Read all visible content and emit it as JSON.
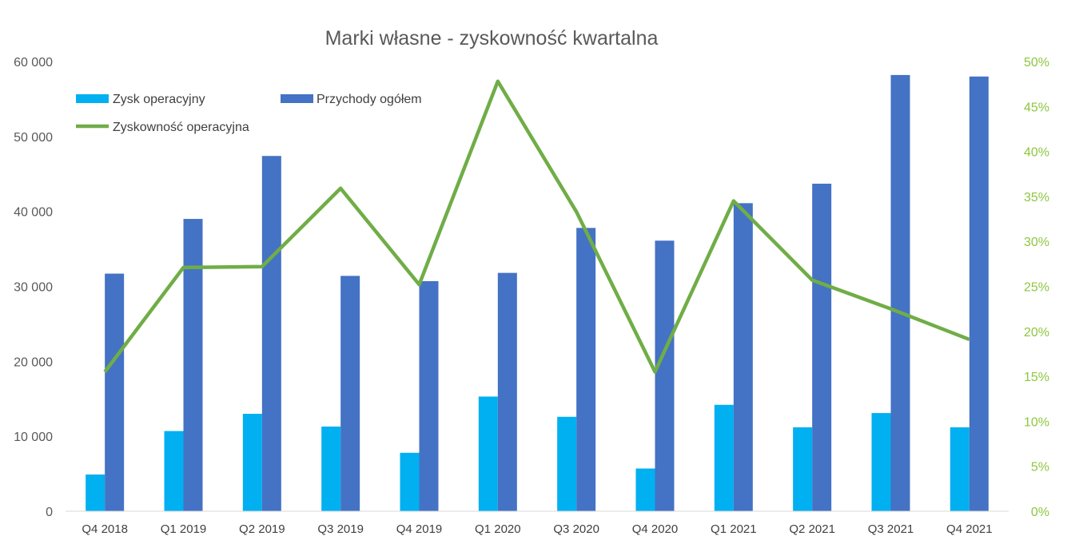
{
  "chart_data": {
    "type": "bar",
    "title": "Marki własne - zyskowność kwartalna",
    "categories": [
      "Q4 2018",
      "Q1 2019",
      "Q2 2019",
      "Q3 2019",
      "Q4 2019",
      "Q1 2020",
      "Q3 2020",
      "Q4 2020",
      "Q1 2021",
      "Q2 2021",
      "Q3 2021",
      "Q4 2021"
    ],
    "series": [
      {
        "name": "Zysk operacyjny",
        "type": "bar",
        "axis": "left",
        "color": "#00b0f0",
        "values": [
          4900,
          10700,
          13000,
          11300,
          7800,
          15300,
          12600,
          5700,
          14200,
          11200,
          13100,
          11200
        ]
      },
      {
        "name": "Przychody ogółem",
        "type": "bar",
        "axis": "left",
        "color": "#4472c4",
        "values": [
          31700,
          39000,
          47400,
          31400,
          30700,
          31800,
          37800,
          36100,
          41100,
          43700,
          58200,
          58000
        ]
      },
      {
        "name": "Zyskowność operacyjna",
        "type": "line",
        "axis": "right",
        "color": "#70ad47",
        "values": [
          0.155,
          0.271,
          0.272,
          0.359,
          0.252,
          0.478,
          0.333,
          0.155,
          0.345,
          0.257,
          0.225,
          0.191
        ]
      }
    ],
    "ylim": [
      0,
      60000
    ],
    "y_ticks": [
      "0",
      "10 000",
      "20 000",
      "30 000",
      "40 000",
      "50 000",
      "60 000"
    ],
    "y2lim": [
      0,
      0.5
    ],
    "y2_ticks": [
      "0%",
      "5%",
      "10%",
      "15%",
      "20%",
      "25%",
      "30%",
      "35%",
      "40%",
      "45%",
      "50%"
    ],
    "grid": false,
    "legend": "top-left"
  }
}
